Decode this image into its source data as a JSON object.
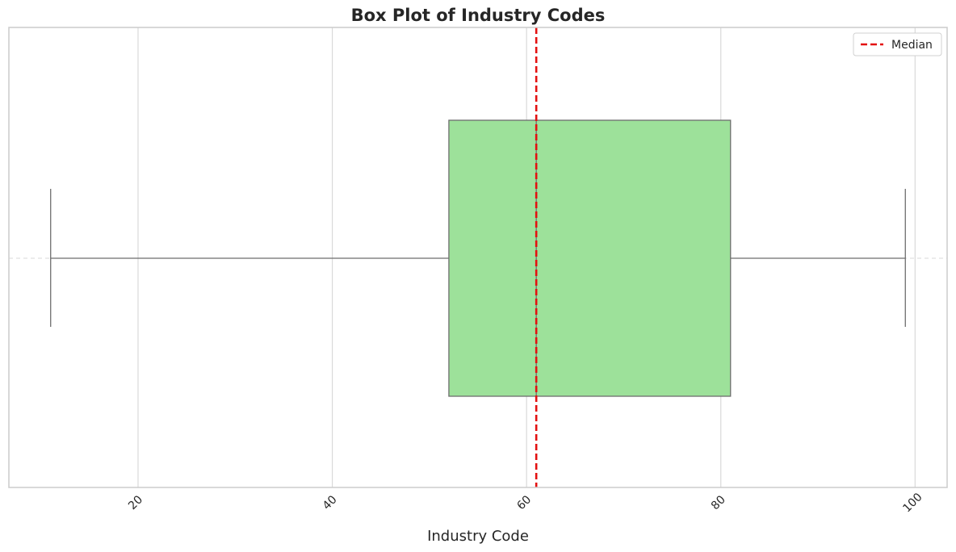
{
  "chart_data": {
    "type": "box",
    "title": "Box Plot of Industry Codes",
    "xlabel": "Industry Code",
    "ylabel": "",
    "xlim": [
      6.7,
      103.3
    ],
    "xticks": [
      20,
      40,
      60,
      80,
      100
    ],
    "xtick_labels": [
      "20",
      "40",
      "60",
      "80",
      "100"
    ],
    "xtick_rotation_deg": 45,
    "orientation": "horizontal",
    "grid": true,
    "box": {
      "whisker_low": 11,
      "q1": 52,
      "median": 61,
      "q3": 81,
      "whisker_high": 99
    },
    "median_line": {
      "value": 61,
      "label": "Median",
      "style": "dashed"
    },
    "legend": {
      "position": "top-right",
      "entries": [
        "Median"
      ]
    },
    "colors": {
      "box_fill": "#9de19a",
      "box_edge": "#6e6e6e",
      "whisker": "#6e6e6e",
      "median_line": "#e31010",
      "grid": "#d9d9d9",
      "frame": "#cccccc"
    }
  }
}
